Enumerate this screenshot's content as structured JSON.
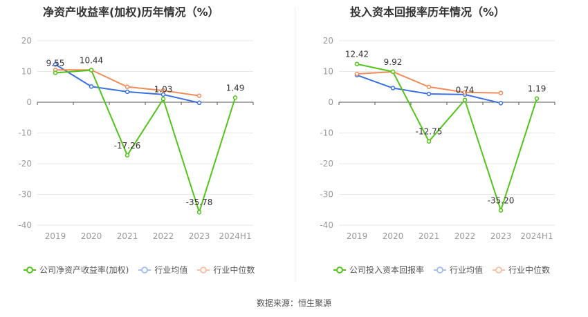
{
  "panels": [
    {
      "title": "净资产收益率(加权)历年情况（%）",
      "legend": [
        "公司净资产收益率(加权)",
        "行业均值",
        "行业中位数"
      ]
    },
    {
      "title": "投入资本回报率历年情况（%）",
      "legend": [
        "公司投入资本回报率",
        "行业均值",
        "行业中位数"
      ]
    }
  ],
  "source_text": "数据来源：恒生聚源",
  "colors": {
    "company": "#52c41a",
    "industry_avg": "#3b6fe0",
    "industry_median": "#f08c5a",
    "grid": "#e8e8e8",
    "axis_text": "#999999"
  },
  "chart_data": [
    {
      "type": "line",
      "title": "净资产收益率(加权)历年情况（%）",
      "categories": [
        "2019",
        "2020",
        "2021",
        "2022",
        "2023",
        "2024H1"
      ],
      "ylim": [
        -40,
        20
      ],
      "yticks": [
        20,
        10,
        0,
        -10,
        -20,
        -30,
        -40
      ],
      "grid": true,
      "legend_position": "bottom",
      "series": [
        {
          "name": "公司净资产收益率(加权)",
          "key": "company",
          "values": [
            9.55,
            10.44,
            -17.26,
            1.03,
            -35.78,
            1.49
          ],
          "labels": [
            "9.55",
            "10.44",
            "-17.26",
            "1.03",
            "-35.78",
            "1.49"
          ]
        },
        {
          "name": "行业均值",
          "key": "industry_avg",
          "values": [
            12.3,
            5.1,
            3.4,
            2.5,
            -0.2,
            null
          ]
        },
        {
          "name": "行业中位数",
          "key": "industry_median",
          "values": [
            10.5,
            10.5,
            5.0,
            3.8,
            2.1,
            null
          ]
        }
      ]
    },
    {
      "type": "line",
      "title": "投入资本回报率历年情况（%）",
      "categories": [
        "2019",
        "2020",
        "2021",
        "2022",
        "2023",
        "2024H1"
      ],
      "ylim": [
        -40,
        20
      ],
      "yticks": [
        20,
        10,
        0,
        -10,
        -20,
        -30,
        -40
      ],
      "grid": true,
      "legend_position": "bottom",
      "series": [
        {
          "name": "公司投入资本回报率",
          "key": "company",
          "values": [
            12.42,
            9.92,
            -12.75,
            0.74,
            -35.2,
            1.19
          ],
          "labels": [
            "12.42",
            "9.92",
            "-12.75",
            "0.74",
            "-35.20",
            "1.19"
          ]
        },
        {
          "name": "行业均值",
          "key": "industry_avg",
          "values": [
            8.8,
            4.6,
            2.7,
            2.5,
            -0.3,
            null
          ]
        },
        {
          "name": "行业中位数",
          "key": "industry_median",
          "values": [
            9.2,
            9.9,
            5.0,
            3.2,
            3.0,
            null
          ]
        }
      ]
    }
  ]
}
